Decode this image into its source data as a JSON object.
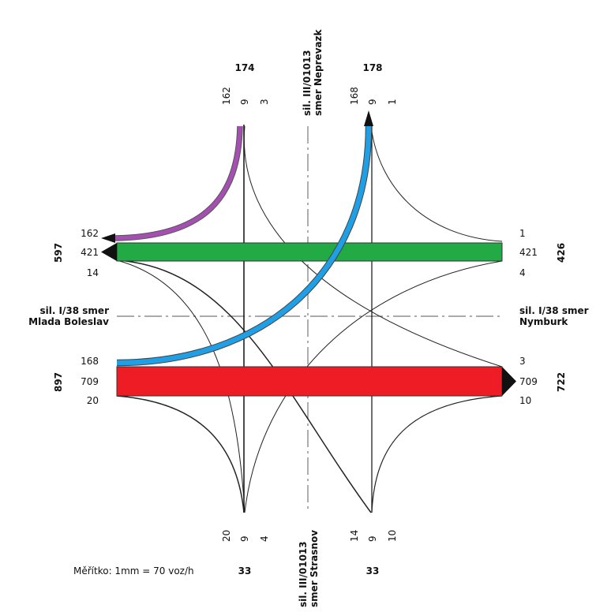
{
  "roads": {
    "north": [
      "sil. III/01013",
      "smer Neprevazk"
    ],
    "south": [
      "sil. III/01013",
      "smer Strasnov"
    ],
    "west": [
      "sil. I/38 smer",
      "Mlada Boleslav"
    ],
    "east": [
      "sil. I/38 smer",
      "Nymburk"
    ]
  },
  "totals": {
    "north_left": "174",
    "north_right": "178",
    "west": "597",
    "east": "426",
    "west_lower": "897",
    "east_lower": "722",
    "south_left": "33",
    "south_right": "33"
  },
  "north_left_flows": [
    "162",
    "9",
    "3"
  ],
  "north_right_flows": [
    "168",
    "9",
    "1"
  ],
  "west_upper_flows": [
    "162",
    "421",
    "14"
  ],
  "east_upper_flows": [
    "1",
    "421",
    "4"
  ],
  "west_lower_flows": [
    "168",
    "709",
    "20"
  ],
  "east_lower_flows": [
    "3",
    "709",
    "10"
  ],
  "south_left_flows": [
    "20",
    "9",
    "4"
  ],
  "south_right_flows": [
    "14",
    "9",
    "10"
  ],
  "scale": "Měřítko: 1mm = 70 voz/h",
  "colors": {
    "purple": "#a64fb3",
    "green": "#22aa44",
    "blue": "#1fa0e6",
    "red": "#ee1c25"
  }
}
